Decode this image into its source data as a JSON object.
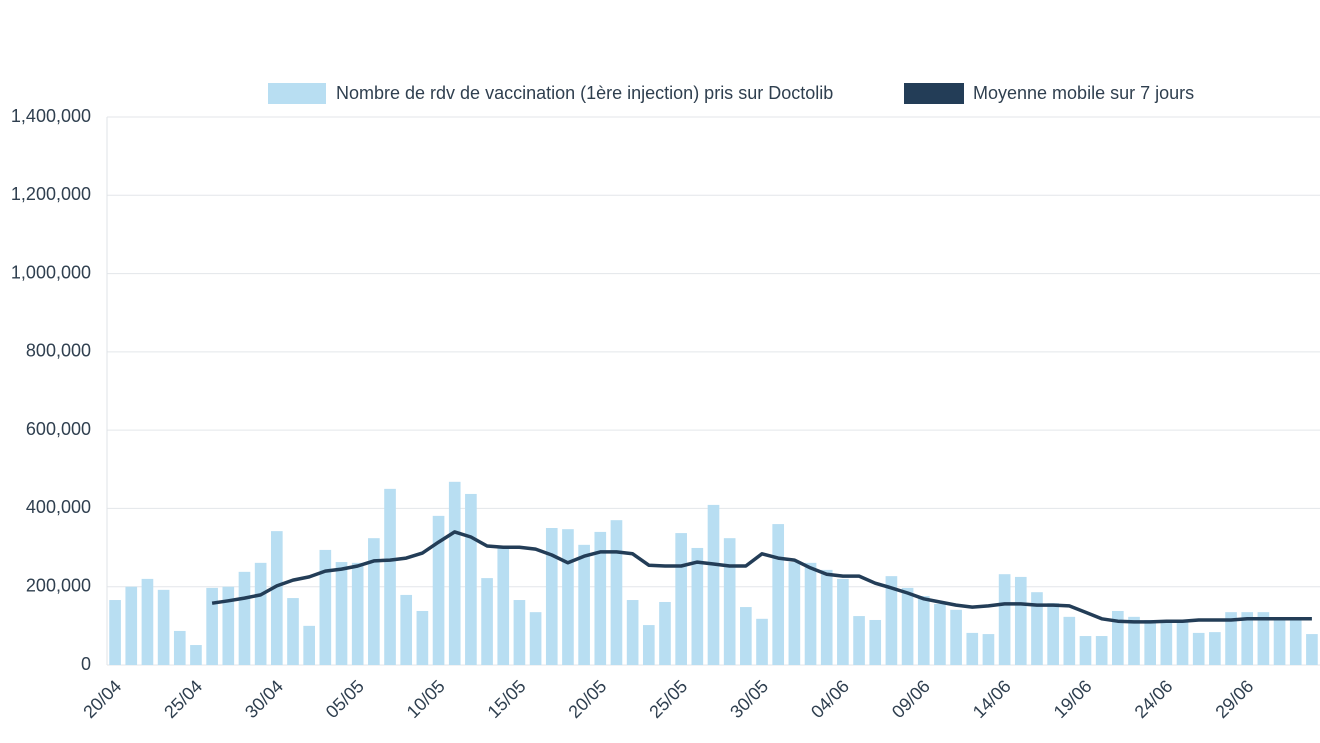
{
  "chart_data": {
    "type": "bar-line",
    "categories": [
      "20/04",
      null,
      null,
      null,
      null,
      "25/04",
      null,
      null,
      null,
      null,
      "30/04",
      null,
      null,
      null,
      null,
      "05/05",
      null,
      null,
      null,
      null,
      "10/05",
      null,
      null,
      null,
      null,
      "15/05",
      null,
      null,
      null,
      null,
      "20/05",
      null,
      null,
      null,
      null,
      "25/05",
      null,
      null,
      null,
      null,
      "30/05",
      null,
      null,
      null,
      null,
      "04/06",
      null,
      null,
      null,
      null,
      "09/06",
      null,
      null,
      null,
      null,
      "14/06",
      null,
      null,
      null,
      null,
      "19/06",
      null,
      null,
      null,
      null,
      "24/06",
      null,
      null,
      null,
      null,
      "29/06",
      null,
      null,
      null,
      null
    ],
    "series": [
      {
        "name": "Nombre de rdv de vaccination (1ère injection) pris sur Doctolib",
        "kind": "bar",
        "color": "#b8def2",
        "values": [
          166000,
          200000,
          220000,
          192000,
          87000,
          51000,
          197000,
          200000,
          238000,
          261000,
          342000,
          171000,
          100000,
          294000,
          263000,
          261000,
          324000,
          450000,
          179000,
          138000,
          381000,
          468000,
          437000,
          222000,
          304000,
          166000,
          135000,
          350000,
          347000,
          307000,
          340000,
          370000,
          166000,
          102000,
          161000,
          337000,
          299000,
          409000,
          324000,
          148000,
          118000,
          360000,
          263000,
          261000,
          243000,
          220000,
          125000,
          115000,
          227000,
          197000,
          176000,
          156000,
          141000,
          82000,
          79000,
          232000,
          225000,
          186000,
          158000,
          123000,
          74000,
          74000,
          138000,
          123000,
          115000,
          110000,
          112000,
          82000,
          84000,
          135000,
          135000,
          135000,
          120000,
          115000,
          79000
        ]
      },
      {
        "name": "Moyenne mobile sur 7 jours",
        "kind": "line",
        "color": "#233d57",
        "values": [
          null,
          null,
          null,
          null,
          null,
          null,
          158000,
          164000,
          171000,
          179000,
          202000,
          217000,
          225000,
          240000,
          245000,
          253000,
          266000,
          268000,
          273000,
          286000,
          314000,
          340000,
          327000,
          304000,
          301000,
          301000,
          296000,
          281000,
          261000,
          278000,
          289000,
          289000,
          284000,
          255000,
          253000,
          253000,
          263000,
          258000,
          253000,
          253000,
          284000,
          273000,
          268000,
          248000,
          232000,
          227000,
          227000,
          209000,
          197000,
          184000,
          169000,
          161000,
          153000,
          148000,
          151000,
          156000,
          156000,
          153000,
          153000,
          151000,
          135000,
          118000,
          112000,
          110000,
          110000,
          112000,
          112000,
          115000,
          115000,
          115000,
          118000,
          118000,
          118000,
          118000,
          118000
        ]
      }
    ],
    "ylim": [
      0,
      1400000
    ],
    "yticks": [
      0,
      {
        "value": 200000,
        "label": "200,000"
      },
      {
        "value": 400000,
        "label": "400,000"
      },
      {
        "value": 600000,
        "label": "600,000"
      },
      {
        "value": 800000,
        "label": "800,000"
      },
      {
        "value": 1000000,
        "label": "1,000,000"
      },
      {
        "value": 1200000,
        "label": "1,200,000"
      },
      {
        "value": 1400000,
        "label": "1,400,000"
      }
    ],
    "grid": true
  }
}
